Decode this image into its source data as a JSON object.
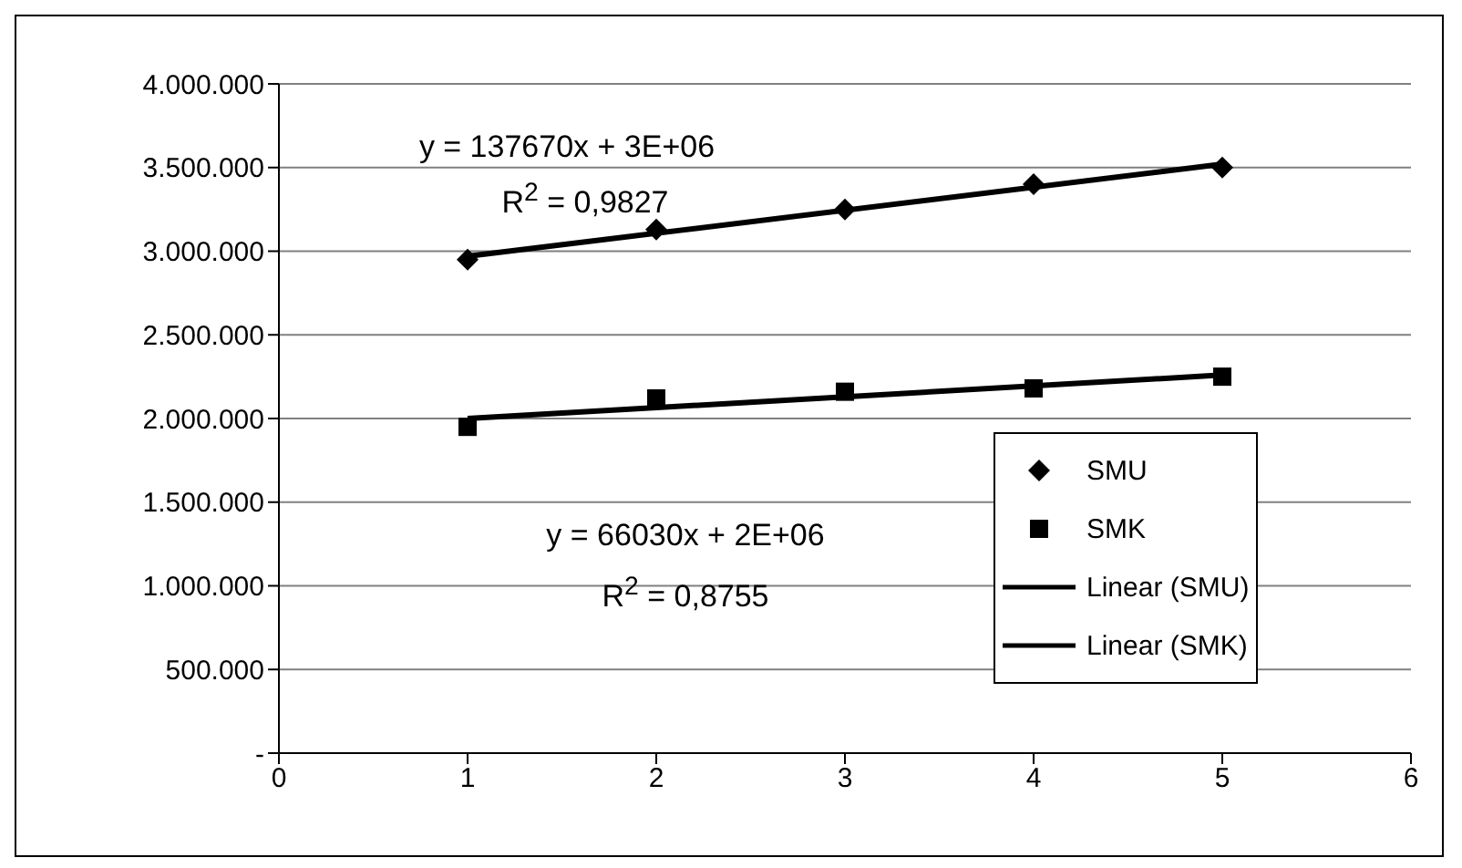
{
  "chart_data": {
    "type": "scatter",
    "xlim": [
      0,
      6
    ],
    "xticks": [
      0,
      1,
      2,
      3,
      4,
      5,
      6
    ],
    "ylim": [
      0,
      4000000
    ],
    "yticks": [
      {
        "value": 0,
        "label": "-"
      },
      {
        "value": 500000,
        "label": "500.000"
      },
      {
        "value": 1000000,
        "label": "1.000.000"
      },
      {
        "value": 1500000,
        "label": "1.500.000"
      },
      {
        "value": 2000000,
        "label": "2.000.000"
      },
      {
        "value": 2500000,
        "label": "2.500.000"
      },
      {
        "value": 3000000,
        "label": "3.000.000"
      },
      {
        "value": 3500000,
        "label": "3.500.000"
      },
      {
        "value": 4000000,
        "label": "4.000.000"
      }
    ],
    "grid": "y",
    "legend": "right",
    "series": [
      {
        "name": "SMU",
        "marker": "diamond",
        "color": "#000000",
        "x": [
          1,
          2,
          3,
          4,
          5
        ],
        "values": [
          2950000,
          3130000,
          3250000,
          3400000,
          3500000
        ]
      },
      {
        "name": "SMK",
        "marker": "square",
        "color": "#000000",
        "x": [
          1,
          2,
          3,
          4,
          5
        ],
        "values": [
          1950000,
          2120000,
          2160000,
          2180000,
          2250000
        ]
      },
      {
        "name": "Linear (SMU)",
        "type": "line",
        "marker": "none",
        "color": "#000000",
        "x": [
          1,
          5
        ],
        "values": [
          2970000,
          3520000
        ]
      },
      {
        "name": "Linear (SMK)",
        "type": "line",
        "marker": "none",
        "color": "#000000",
        "x": [
          1,
          5
        ],
        "values": [
          2000000,
          2260000
        ]
      }
    ],
    "annotations": [
      "y = 137670x + 3E+06",
      "R$^{2}$ = 0,9827",
      "y = 66030x + 2E+06",
      "R$^{2}$ = 0,8755"
    ]
  }
}
